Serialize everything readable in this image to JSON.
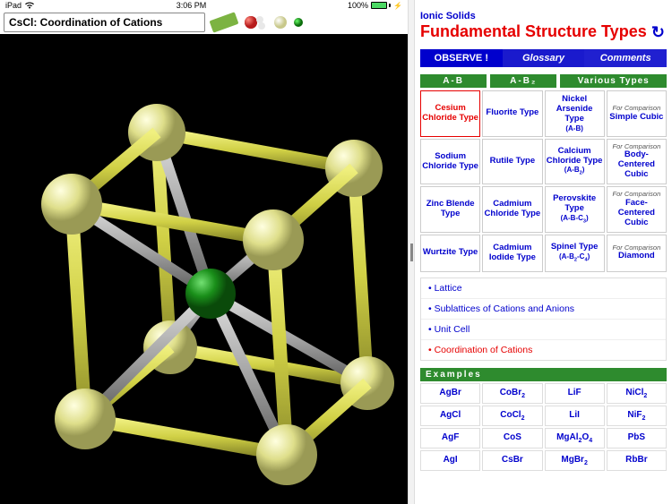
{
  "status": {
    "device": "iPad",
    "time": "3:06 PM",
    "battery_pct": "100%"
  },
  "viewer": {
    "title": "CsCl: Coordination of Cations",
    "background": "#000000",
    "corner_atom_color": "#dede8a",
    "center_atom_color": "#1a8f1a",
    "edge_color": "#d0d045",
    "diag_color": "#8b8b8b"
  },
  "panel": {
    "subtitle": "Ionic Solids",
    "title": "Fundamental Structure Types",
    "nav": [
      "OBSERVE !",
      "Glossary",
      "Comments"
    ],
    "categories": [
      "A-B",
      "A-B₂",
      "Various Types"
    ],
    "types": [
      {
        "main": "Cesium Chloride Type",
        "active": true
      },
      {
        "main": "Fluorite Type"
      },
      {
        "main": "Nickel Arsenide Type",
        "sub": "(A-B)"
      },
      {
        "note": "For Comparison",
        "main": "Simple Cubic"
      },
      {
        "main": "Sodium Chloride Type"
      },
      {
        "main": "Rutile Type"
      },
      {
        "main": "Calcium Chloride Type",
        "sub": "(A-B₂)"
      },
      {
        "note": "For Comparison",
        "main": "Body-Centered Cubic"
      },
      {
        "main": "Zinc Blende Type"
      },
      {
        "main": "Cadmium Chloride Type"
      },
      {
        "main": "Perovskite Type",
        "sub": "(A-B-C₃)"
      },
      {
        "note": "For Comparison",
        "main": "Face-Centered Cubic"
      },
      {
        "main": "Wurtzite Type"
      },
      {
        "main": "Cadmium Iodide Type"
      },
      {
        "main": "Spinel Type",
        "sub": "(A-B₂-C₄)"
      },
      {
        "note": "For Comparison",
        "main": "Diamond"
      }
    ],
    "topics": [
      {
        "label": "Lattice"
      },
      {
        "label": "Sublattices of Cations and Anions"
      },
      {
        "label": "Unit Cell"
      },
      {
        "label": "Coordination of Cations",
        "active": true
      }
    ],
    "examples_header": "Examples",
    "examples": [
      "AgBr",
      "CoBr₂",
      "LiF",
      "NiCl₂",
      "AgCl",
      "CoCl₂",
      "LiI",
      "NiF₂",
      "AgF",
      "CoS",
      "MgAl₂O₄",
      "PbS",
      "AgI",
      "CsBr",
      "MgBr₂",
      "RbBr"
    ]
  },
  "colors": {
    "link_blue": "#0000cd",
    "accent_red": "#e60000",
    "header_green": "#2e8b2e"
  }
}
